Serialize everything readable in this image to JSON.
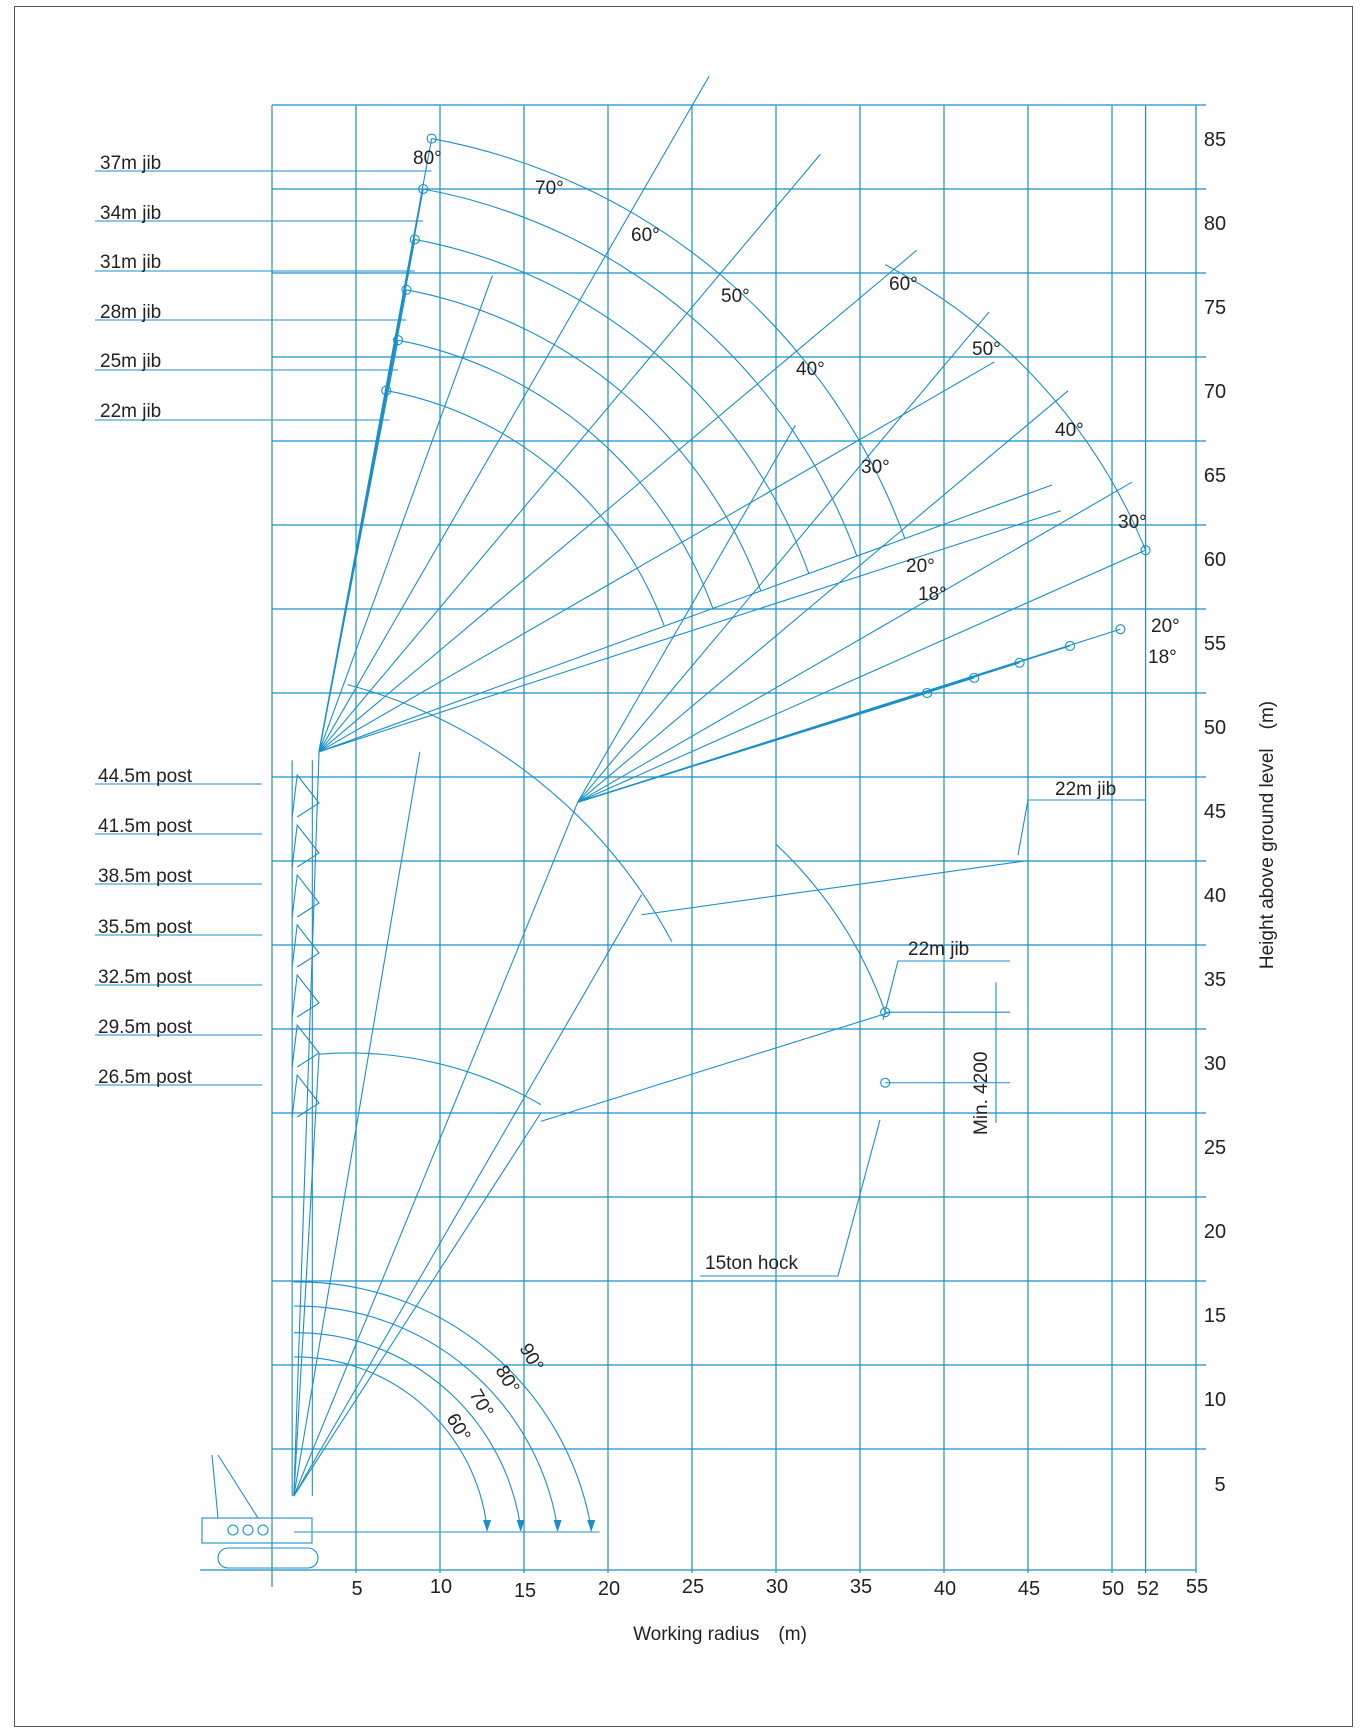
{
  "colors": {
    "line": "#1a8fc9",
    "text": "#222222",
    "frame": "#555555"
  },
  "axes": {
    "x_title": "Working radius　(m)",
    "y_title": "Height above ground level　(m)",
    "x_ticks": [
      "5",
      "10",
      "15",
      "20",
      "25",
      "30",
      "35",
      "40",
      "45",
      "50",
      "52",
      "55"
    ],
    "x_tick_values": [
      5,
      10,
      15,
      20,
      25,
      30,
      35,
      40,
      45,
      50,
      52,
      55
    ],
    "y_ticks": [
      "5",
      "10",
      "15",
      "20",
      "25",
      "30",
      "35",
      "40",
      "45",
      "50",
      "55",
      "60",
      "65",
      "70",
      "75",
      "80",
      "85"
    ],
    "y_tick_values": [
      5,
      10,
      15,
      20,
      25,
      30,
      35,
      40,
      45,
      50,
      55,
      60,
      65,
      70,
      75,
      80,
      85
    ],
    "xlim": [
      0,
      55
    ],
    "ylim": [
      0,
      85
    ]
  },
  "jib_labels": [
    "37m jib",
    "34m jib",
    "31m jib",
    "28m jib",
    "25m jib",
    "22m jib"
  ],
  "post_labels": [
    "44.5m post",
    "41.5m post",
    "38.5m post",
    "35.5m post",
    "32.5m post",
    "29.5m post",
    "26.5m post"
  ],
  "angle_labels": {
    "post_angles": [
      "80°",
      "70°",
      "60°",
      "50°",
      "40°",
      "30°",
      "20°",
      "18°"
    ],
    "mid_angles": [
      "60°",
      "50°",
      "40°",
      "30°",
      "20°",
      "18°"
    ],
    "base_angles": [
      "90°",
      "80°",
      "70°",
      "60°"
    ]
  },
  "callouts": {
    "jib_22_upper": "22m jib",
    "jib_22_lower": "22m jib",
    "hook": "15ton hock",
    "min_clearance": "Min. 4200"
  },
  "chart_data": {
    "type": "range-diagram",
    "x_unit": "m",
    "y_unit": "m",
    "jib_tip_heights_at_80deg": [
      {
        "jib": "37m jib",
        "radius": 9.5,
        "height": 83
      },
      {
        "jib": "34m jib",
        "radius": 9.0,
        "height": 80
      },
      {
        "jib": "31m jib",
        "radius": 8.5,
        "height": 77
      },
      {
        "jib": "28m jib",
        "radius": 8.0,
        "height": 74
      },
      {
        "jib": "25m jib",
        "radius": 7.5,
        "height": 71
      },
      {
        "jib": "22m jib",
        "radius": 6.8,
        "height": 68
      }
    ],
    "post_heights": [
      {
        "post": "44.5m post",
        "height": 46.5
      },
      {
        "post": "26.5m post",
        "height": 28.5
      }
    ],
    "tip_points_44_5_post_37m_jib": [
      {
        "angle": 80,
        "radius": 9.5,
        "height": 83
      },
      {
        "angle": 30,
        "radius": 23.8,
        "height": 53.2
      },
      {
        "angle": 20,
        "radius": 38.0,
        "height": 58.0
      }
    ],
    "tip_points_outer_arc": [
      {
        "radius": 52.0,
        "height": 58.5
      },
      {
        "radius": 50.5,
        "height": 53.8
      },
      {
        "radius": 47.5,
        "height": 52.8
      },
      {
        "radius": 44.5,
        "height": 51.8
      },
      {
        "radius": 41.8,
        "height": 50.9
      },
      {
        "radius": 39.0,
        "height": 50.0
      }
    ],
    "hook_block": {
      "radius": 36.5,
      "top": 31.0,
      "bottom": 26.8,
      "min_clearance_mm": 4200
    },
    "base_angle_radii": [
      {
        "angle": "90°",
        "radius": 19.0
      },
      {
        "angle": "80°",
        "radius": 17.0
      },
      {
        "angle": "70°",
        "radius": 14.8
      },
      {
        "angle": "60°",
        "radius": 12.8
      }
    ]
  }
}
